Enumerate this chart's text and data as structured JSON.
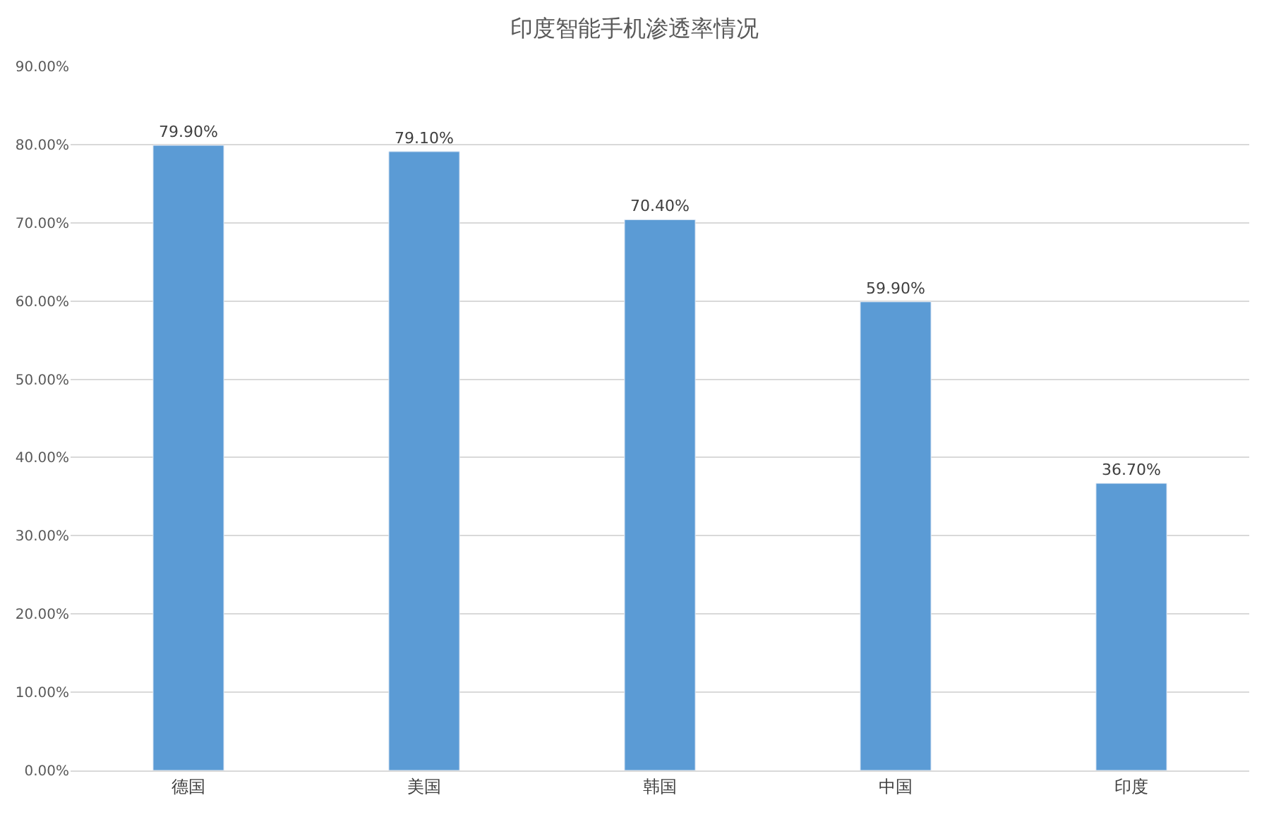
{
  "chart_data": {
    "type": "bar",
    "title": "印度智能手机渗透率情况",
    "categories": [
      "德国",
      "美国",
      "韩国",
      "中国",
      "印度"
    ],
    "values": [
      79.9,
      79.1,
      70.4,
      59.9,
      36.7
    ],
    "value_labels": [
      "79.90%",
      "79.10%",
      "70.40%",
      "59.90%",
      "36.70%"
    ],
    "color": "#5b9bd5",
    "ylim": [
      0,
      90
    ],
    "yticks": [
      {
        "value": 0,
        "label": "0.00%"
      },
      {
        "value": 10,
        "label": "10.00%"
      },
      {
        "value": 20,
        "label": "20.00%"
      },
      {
        "value": 30,
        "label": "30.00%"
      },
      {
        "value": 40,
        "label": "40.00%"
      },
      {
        "value": 50,
        "label": "50.00%"
      },
      {
        "value": 60,
        "label": "60.00%"
      },
      {
        "value": 70,
        "label": "70.00%"
      },
      {
        "value": 80,
        "label": "80.00%"
      },
      {
        "value": 90,
        "label": "90.00%"
      }
    ],
    "grid": "y"
  }
}
